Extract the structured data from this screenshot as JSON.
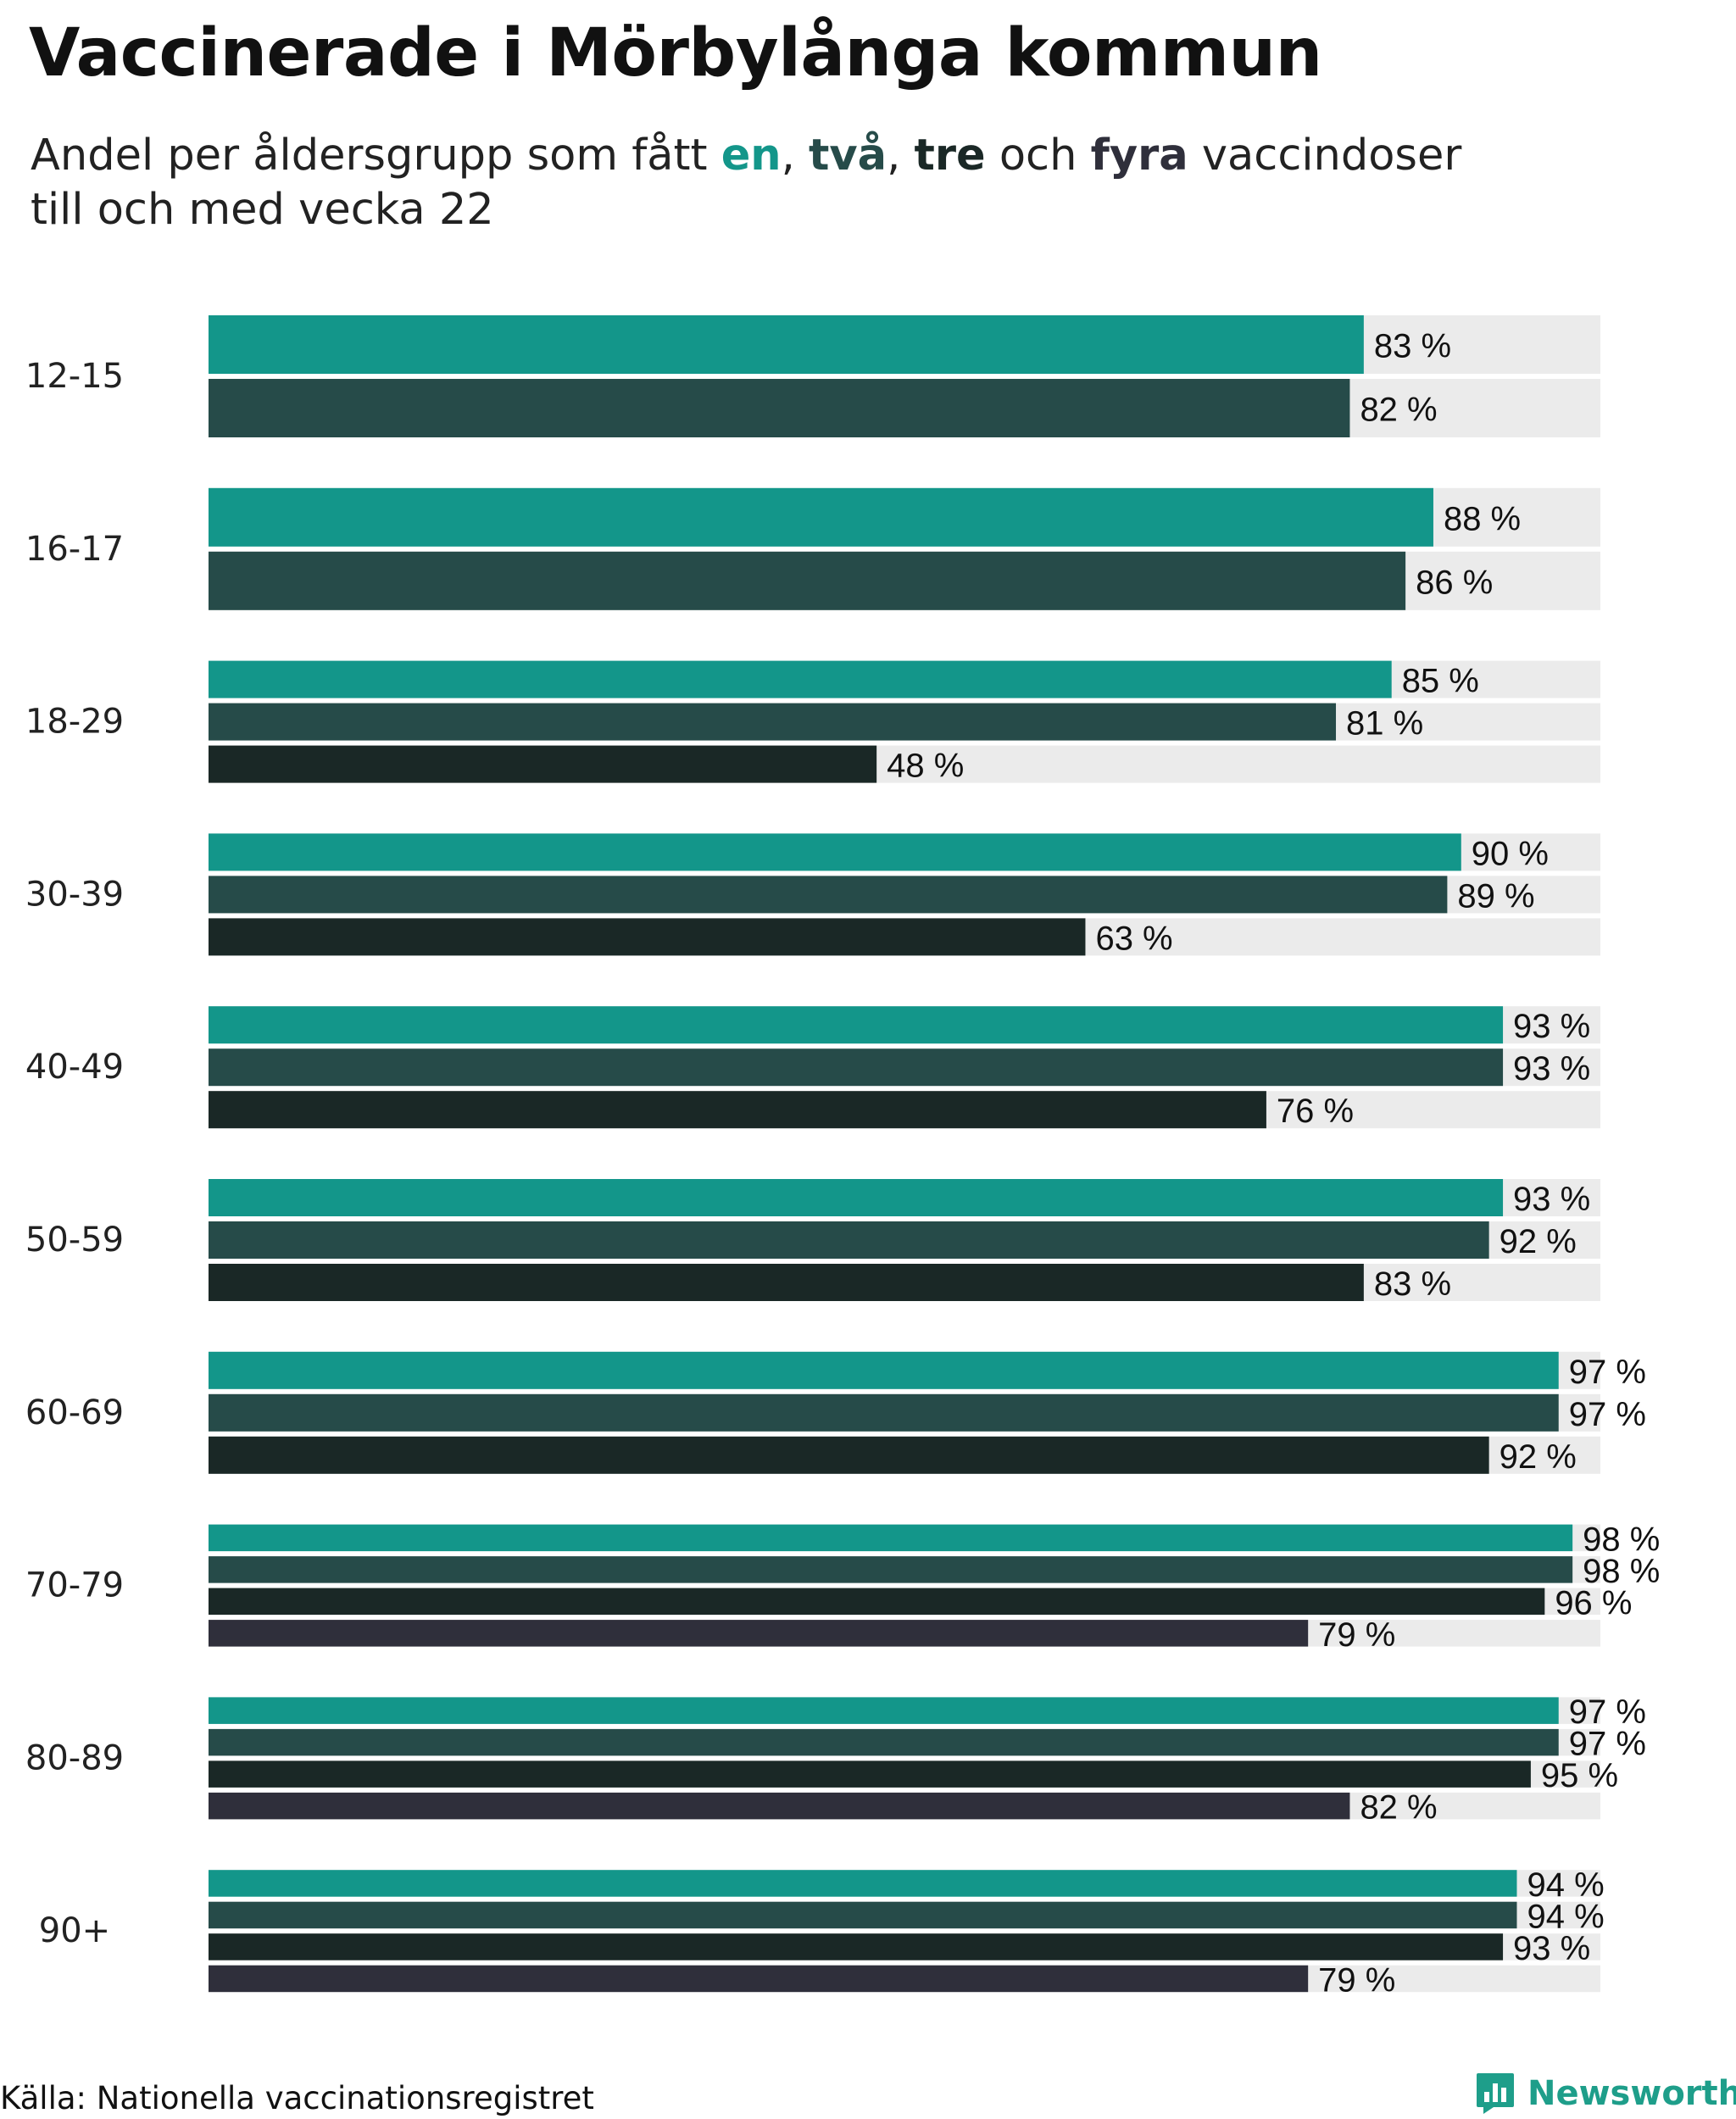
{
  "title": "Vaccinerade i Mörbylånga kommun",
  "subtitle": {
    "pre": "Andel per åldersgrupp som fått ",
    "en": "en",
    "sep1": ", ",
    "tva": "två",
    "sep2": ", ",
    "tre": "tre",
    "mid": " och ",
    "fyra": "fyra",
    "post": " vaccindoser",
    "line2": "till och med vecka 22"
  },
  "source": "Källa: Nationella vaccinationsregistret",
  "brand": {
    "name": "Newsworthy",
    "icon": "newsworthy-logo-icon"
  },
  "colors": {
    "en": "#13968a",
    "tva": "#264b49",
    "tre": "#1a2826",
    "fyra": "#2f2f3b",
    "track": "#ebebeb",
    "brand": "#1e9e8a"
  },
  "chart_data": {
    "type": "bar",
    "orientation": "horizontal",
    "title": "Vaccinerade i Mörbylånga kommun",
    "xlim": [
      0,
      100
    ],
    "value_suffix": " %",
    "categories": [
      "12-15",
      "16-17",
      "18-29",
      "30-39",
      "40-49",
      "50-59",
      "60-69",
      "70-79",
      "80-89",
      "90+"
    ],
    "series": [
      {
        "name": "en",
        "values": [
          83,
          88,
          85,
          90,
          93,
          93,
          97,
          98,
          97,
          94
        ]
      },
      {
        "name": "två",
        "values": [
          82,
          86,
          81,
          89,
          93,
          92,
          97,
          98,
          97,
          94
        ]
      },
      {
        "name": "tre",
        "values": [
          null,
          null,
          48,
          63,
          76,
          83,
          92,
          96,
          95,
          93
        ]
      },
      {
        "name": "fyra",
        "values": [
          null,
          null,
          null,
          null,
          null,
          null,
          null,
          79,
          82,
          79
        ]
      }
    ]
  }
}
